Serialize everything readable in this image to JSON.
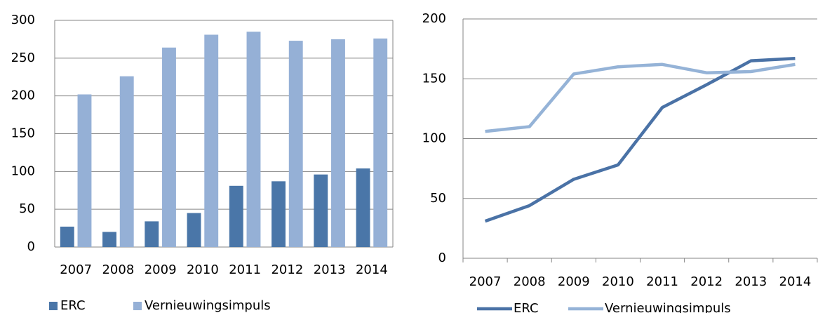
{
  "chart_data": [
    {
      "type": "bar",
      "categories": [
        "2007",
        "2008",
        "2009",
        "2010",
        "2011",
        "2012",
        "2013",
        "2014"
      ],
      "series": [
        {
          "name": "ERC",
          "color": "#4a76a8",
          "values": [
            27,
            20,
            34,
            45,
            81,
            87,
            96,
            104
          ]
        },
        {
          "name": "Vernieuwingsimpuls",
          "color": "#95b0d6",
          "values": [
            202,
            226,
            264,
            281,
            285,
            273,
            275,
            276
          ]
        }
      ],
      "ylim": [
        0,
        300
      ],
      "yticks": [
        0,
        50,
        100,
        150,
        200,
        250,
        300
      ],
      "grid": true,
      "legend": "bottom"
    },
    {
      "type": "line",
      "categories": [
        "2007",
        "2008",
        "2009",
        "2010",
        "2011",
        "2012",
        "2013",
        "2014"
      ],
      "series": [
        {
          "name": "ERC",
          "color": "#4a72a6",
          "values": [
            31,
            44,
            66,
            78,
            126,
            145,
            165,
            167
          ]
        },
        {
          "name": "Vernieuwingsimpuls",
          "color": "#95b3d7",
          "values": [
            106,
            110,
            154,
            160,
            162,
            155,
            156,
            162
          ]
        }
      ],
      "ylim": [
        0,
        200
      ],
      "yticks": [
        0,
        50,
        100,
        150,
        200
      ],
      "grid": true,
      "legend": "bottom"
    }
  ]
}
